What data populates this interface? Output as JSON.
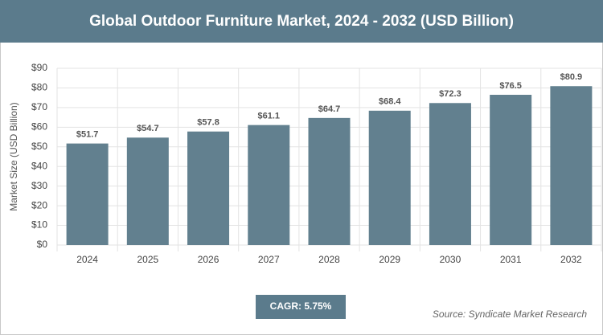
{
  "chart_data": {
    "type": "bar",
    "title": "Global Outdoor Furniture Market, 2024 - 2032 (USD Billion)",
    "y_label": "Market Size (USD Billion)",
    "categories": [
      "2024",
      "2025",
      "2026",
      "2027",
      "2028",
      "2029",
      "2030",
      "2031",
      "2032"
    ],
    "values": [
      51.7,
      54.7,
      57.8,
      61.1,
      64.7,
      68.4,
      72.3,
      76.5,
      80.9
    ],
    "value_labels": [
      "$51.7",
      "$54.7",
      "$57.8",
      "$61.1",
      "$64.7",
      "$68.4",
      "$72.3",
      "$76.5",
      "$80.9"
    ],
    "color": "#62808f",
    "ylim": [
      0,
      90
    ],
    "yticks": [
      {
        "value": 0,
        "label": "$0"
      },
      {
        "value": 10,
        "label": "$10"
      },
      {
        "value": 20,
        "label": "$20"
      },
      {
        "value": 30,
        "label": "$30"
      },
      {
        "value": 40,
        "label": "$40"
      },
      {
        "value": 50,
        "label": "$50"
      },
      {
        "value": 60,
        "label": "$60"
      },
      {
        "value": 70,
        "label": "$70"
      },
      {
        "value": 80,
        "label": "$80"
      },
      {
        "value": 90,
        "label": "$90"
      }
    ],
    "grid": true,
    "cagr": "CAGR: 5.75%",
    "source": "Source: Syndicate Market Research"
  }
}
